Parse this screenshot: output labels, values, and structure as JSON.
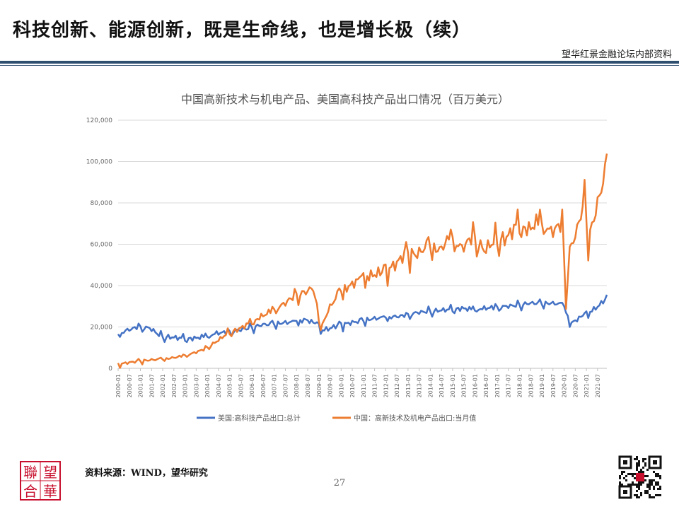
{
  "slide": {
    "title": "科技创新、能源创新，既是生命线，也是增长极（续）",
    "org_label": "望华红景金融论坛内部资料",
    "source": "资料来源：WIND，望华研究",
    "page_number": "27",
    "logo_text": "聯望合華",
    "accent_color": "#2f4f6f",
    "logo_color": "#c8102e"
  },
  "chart_data": {
    "type": "line",
    "title": "中国高新技术与机电产品、美国高科技产品出口情况（百万美元）",
    "xlabel": "",
    "ylabel": "",
    "ylim": [
      0,
      120000
    ],
    "yticks": [
      0,
      20000,
      40000,
      60000,
      80000,
      100000,
      120000
    ],
    "ytick_labels": [
      "0",
      "20,000",
      "40,000",
      "60,000",
      "80,000",
      "100,000",
      "120,000"
    ],
    "x_start": "2000-01",
    "x_end": "2021-12",
    "xtick_labels": [
      "2000-01",
      "2000-07",
      "2001-01",
      "2001-07",
      "2002-01",
      "2002-07",
      "2003-01",
      "2003-07",
      "2004-01",
      "2004-07",
      "2005-01",
      "2005-07",
      "2006-01",
      "2006-07",
      "2007-01",
      "2007-07",
      "2008-01",
      "2008-07",
      "2009-01",
      "2009-07",
      "2010-01",
      "2010-07",
      "2011-01",
      "2011-07",
      "2012-01",
      "2012-07",
      "2013-01",
      "2013-07",
      "2014-01",
      "2014-07",
      "2015-01",
      "2015-07",
      "2016-01",
      "2016-07",
      "2017-01",
      "2017-07",
      "2018-01",
      "2018-07",
      "2019-01",
      "2019-07",
      "2020-01",
      "2020-07",
      "2021-01",
      "2021-07"
    ],
    "grid": "horizontal",
    "legend_position": "bottom",
    "series": [
      {
        "name": "美国:高科技产品出口:总计",
        "color": "#4472c4",
        "anchors": [
          [
            "2000-01",
            16500
          ],
          [
            "2000-06",
            18500
          ],
          [
            "2000-12",
            20000
          ],
          [
            "2001-06",
            19500
          ],
          [
            "2001-12",
            15500
          ],
          [
            "2002-06",
            15000
          ],
          [
            "2002-12",
            14500
          ],
          [
            "2003-06",
            14500
          ],
          [
            "2003-12",
            15500
          ],
          [
            "2004-06",
            17000
          ],
          [
            "2004-12",
            17500
          ],
          [
            "2005-06",
            18500
          ],
          [
            "2005-12",
            19500
          ],
          [
            "2006-06",
            21000
          ],
          [
            "2006-12",
            21500
          ],
          [
            "2007-06",
            22000
          ],
          [
            "2007-12",
            22500
          ],
          [
            "2008-06",
            23500
          ],
          [
            "2008-12",
            21500
          ],
          [
            "2009-03",
            18500
          ],
          [
            "2009-06",
            19000
          ],
          [
            "2009-12",
            21000
          ],
          [
            "2010-06",
            22000
          ],
          [
            "2010-12",
            23000
          ],
          [
            "2011-06",
            24000
          ],
          [
            "2011-12",
            24500
          ],
          [
            "2012-06",
            25000
          ],
          [
            "2012-12",
            25500
          ],
          [
            "2013-06",
            27000
          ],
          [
            "2013-12",
            27500
          ],
          [
            "2014-06",
            28000
          ],
          [
            "2014-12",
            28500
          ],
          [
            "2015-06",
            29000
          ],
          [
            "2015-12",
            28500
          ],
          [
            "2016-06",
            29000
          ],
          [
            "2016-12",
            29500
          ],
          [
            "2017-06",
            30000
          ],
          [
            "2017-12",
            30500
          ],
          [
            "2018-06",
            31500
          ],
          [
            "2018-12",
            31500
          ],
          [
            "2019-06",
            31500
          ],
          [
            "2019-12",
            31000
          ],
          [
            "2020-02",
            29000
          ],
          [
            "2020-04",
            21000
          ],
          [
            "2020-06",
            22500
          ],
          [
            "2020-12",
            26000
          ],
          [
            "2021-06",
            29000
          ],
          [
            "2021-12",
            34000
          ]
        ],
        "amplitude": 1500
      },
      {
        "name": "中国：高新技术及机电产品出口:当月值",
        "color": "#ed7d31",
        "anchors": [
          [
            "2000-01",
            2000
          ],
          [
            "2000-12",
            3500
          ],
          [
            "2001-06",
            4000
          ],
          [
            "2001-12",
            4500
          ],
          [
            "2002-06",
            5000
          ],
          [
            "2002-12",
            6000
          ],
          [
            "2003-06",
            7500
          ],
          [
            "2003-12",
            9500
          ],
          [
            "2004-06",
            13000
          ],
          [
            "2004-12",
            17000
          ],
          [
            "2005-06",
            19000
          ],
          [
            "2005-12",
            22000
          ],
          [
            "2006-06",
            25000
          ],
          [
            "2006-12",
            28000
          ],
          [
            "2007-06",
            31000
          ],
          [
            "2007-12",
            35000
          ],
          [
            "2008-06",
            37000
          ],
          [
            "2008-10",
            39000
          ],
          [
            "2009-01",
            23000
          ],
          [
            "2009-03",
            21000
          ],
          [
            "2009-06",
            28000
          ],
          [
            "2009-12",
            37000
          ],
          [
            "2010-06",
            40000
          ],
          [
            "2010-12",
            44000
          ],
          [
            "2011-06",
            45000
          ],
          [
            "2011-12",
            47000
          ],
          [
            "2012-06",
            50000
          ],
          [
            "2012-12",
            56000
          ],
          [
            "2013-06",
            55000
          ],
          [
            "2013-12",
            60000
          ],
          [
            "2014-06",
            57000
          ],
          [
            "2014-12",
            64000
          ],
          [
            "2015-06",
            58000
          ],
          [
            "2015-12",
            64000
          ],
          [
            "2016-06",
            57000
          ],
          [
            "2016-12",
            62000
          ],
          [
            "2017-06",
            63000
          ],
          [
            "2017-12",
            70000
          ],
          [
            "2018-06",
            67000
          ],
          [
            "2018-12",
            72000
          ],
          [
            "2019-06",
            66000
          ],
          [
            "2019-12",
            70000
          ],
          [
            "2020-02",
            33000
          ],
          [
            "2020-04",
            57000
          ],
          [
            "2020-08",
            67000
          ],
          [
            "2020-12",
            82000
          ],
          [
            "2021-02",
            62000
          ],
          [
            "2021-06",
            76000
          ],
          [
            "2021-12",
            98000
          ]
        ],
        "amplitude": 3500
      }
    ]
  }
}
